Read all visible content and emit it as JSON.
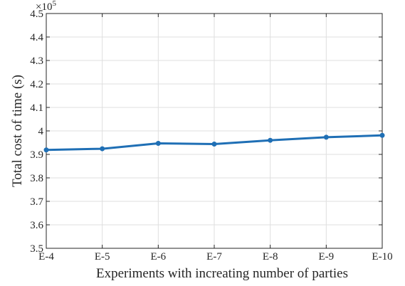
{
  "chart_data": {
    "type": "line",
    "categories": [
      "E-4",
      "E-5",
      "E-6",
      "E-7",
      "E-8",
      "E-9",
      "E-10"
    ],
    "series": [
      {
        "values": [
          391900,
          392400,
          394700,
          394400,
          396000,
          397300,
          398100
        ]
      }
    ],
    "xlabel": "Experiments with increating number of parties",
    "ylabel": "Total cost of time (s)",
    "ylim": [
      350000,
      450000
    ],
    "yticks": [
      "3.5",
      "3.6",
      "3.7",
      "3.8",
      "3.9",
      "4",
      "4.1",
      "4.2",
      "4.3",
      "4.4",
      "4.5"
    ],
    "y_exponent_base": "×10",
    "y_exponent_power": "5",
    "grid": true,
    "color": "#1f6fb5"
  }
}
